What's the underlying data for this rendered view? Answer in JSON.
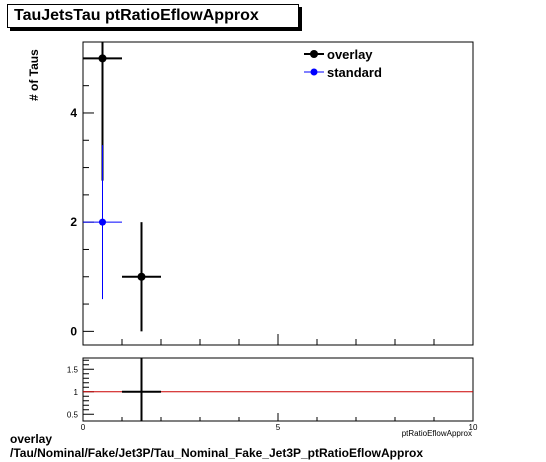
{
  "title": "TauJetsTau ptRatioEflowApprox",
  "footer": {
    "line1": "overlay",
    "line2": "/Tau/Nominal/Fake/Jet3P/Tau_Nominal_Fake_Jet3P_ptRatioEflowApprox"
  },
  "colors": {
    "overlay": "#000000",
    "standard": "#0000ff",
    "ratio_line": "#cc0000"
  },
  "chart_data": [
    {
      "type": "scatter",
      "title": "TauJetsTau ptRatioEflowApprox",
      "ylabel": "# of Taus",
      "xlabel": "",
      "xlim": [
        0,
        10
      ],
      "ylim": [
        -0.25,
        5.3
      ],
      "yticks": [
        0,
        2,
        4
      ],
      "grid": false,
      "legend_position": "top-right",
      "series": [
        {
          "name": "overlay",
          "color": "#000000",
          "points": [
            {
              "x": 0.5,
              "y": 5,
              "xerr": 0.5,
              "yerr": 2.24
            },
            {
              "x": 1.5,
              "y": 1,
              "xerr": 0.5,
              "yerr": 1
            }
          ]
        },
        {
          "name": "standard",
          "color": "#0000ff",
          "points": [
            {
              "x": 0.5,
              "y": 2,
              "xerr": 0.5,
              "yerr": 1.41
            }
          ]
        }
      ]
    },
    {
      "type": "scatter",
      "title": "",
      "xlabel": "ptRatioEflowApprox",
      "ylabel": "",
      "xlim": [
        0,
        10
      ],
      "xticks": [
        0,
        5,
        10
      ],
      "ylim": [
        0.35,
        1.75
      ],
      "yticks": [
        0.5,
        1,
        1.5
      ],
      "reference_line": 1,
      "points": [
        {
          "x": 1.5,
          "y": 1,
          "xerr": 0.5,
          "yerr": 1
        }
      ]
    }
  ]
}
